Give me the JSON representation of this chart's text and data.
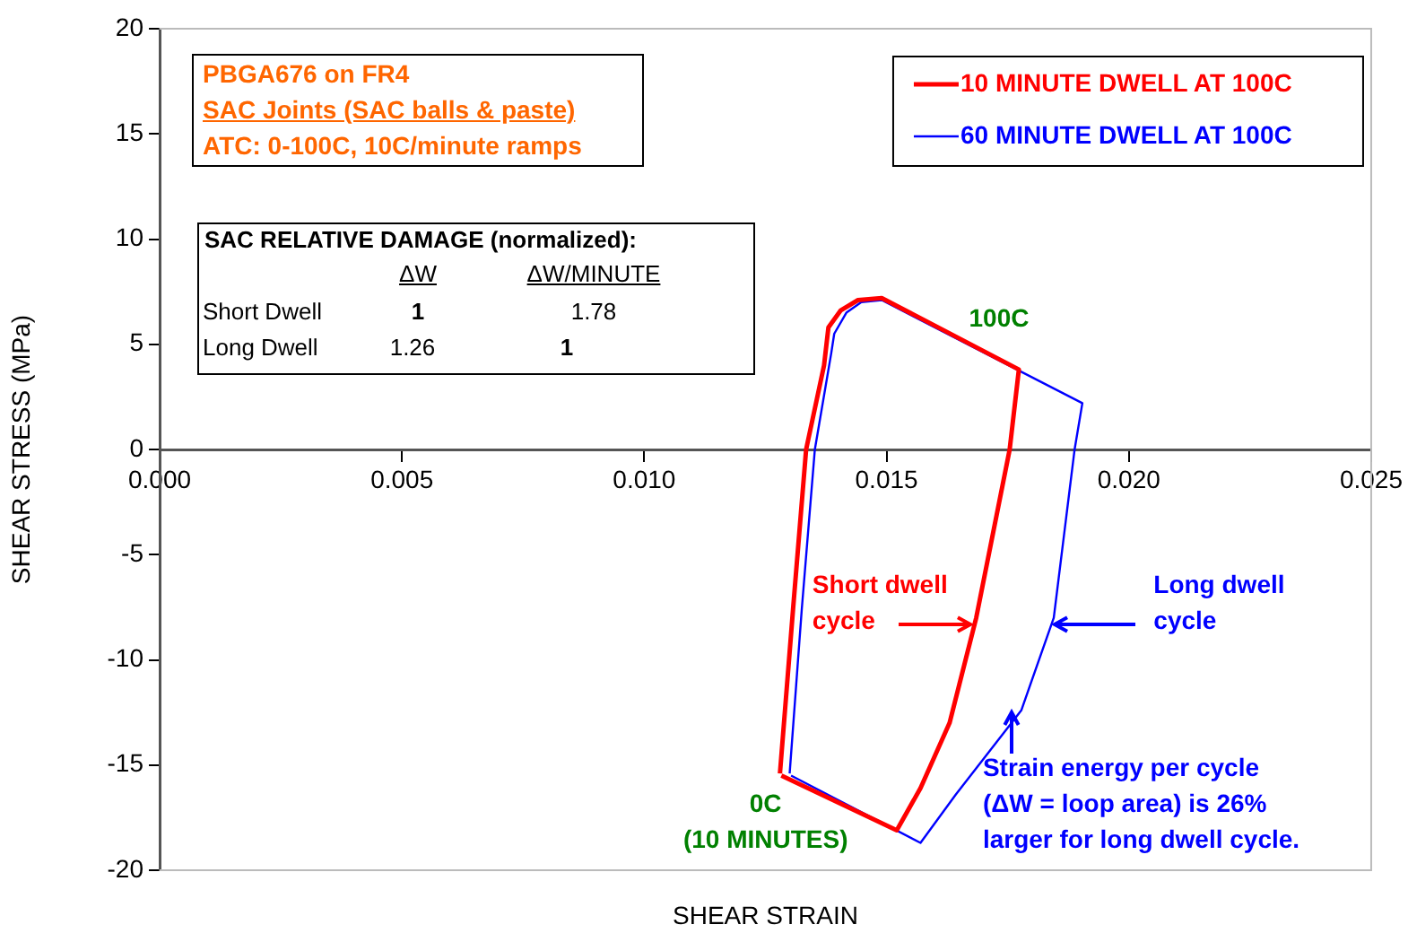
{
  "chart_data": {
    "type": "line",
    "xlabel": "SHEAR STRAIN",
    "ylabel": "SHEAR STRESS (MPa)",
    "xlim": [
      0,
      0.025
    ],
    "xticks": [
      {
        "value": 0,
        "label": "0.000"
      },
      {
        "value": 0.005,
        "label": "0.005"
      },
      {
        "value": 0.01,
        "label": "0.010"
      },
      {
        "value": 0.015,
        "label": "0.015"
      },
      {
        "value": 0.02,
        "label": "0.020"
      },
      {
        "value": 0.025,
        "label": "0.025"
      }
    ],
    "ylim": [
      -20,
      20
    ],
    "yticks": [
      -20,
      -15,
      -10,
      -5,
      0,
      5,
      10,
      15,
      20
    ],
    "grid": false,
    "legend": "top right",
    "marker": "none",
    "line_style": "solid",
    "series": [
      {
        "name": "10 MINUTE DWELL AT 100C",
        "color": "#ff0000",
        "x": [
          0.0128,
          0.01307,
          0.01334,
          0.01371,
          0.0138,
          0.01405,
          0.01441,
          0.0149,
          0.01773,
          0.01754,
          0.01685,
          0.0163,
          0.0157,
          0.01521,
          0.01283
        ],
        "values": [
          -15.4,
          -7.6,
          0,
          4,
          5.8,
          6.6,
          7.1,
          7.2,
          3.8,
          0,
          -8,
          -13,
          -16.1,
          -18.1,
          -15.5
        ]
      },
      {
        "name": "60 MINUTE DWELL AT 100C",
        "color": "#0000ff",
        "x": [
          0.013,
          0.01325,
          0.01352,
          0.01386,
          0.01392,
          0.01417,
          0.01448,
          0.0149,
          0.01904,
          0.01888,
          0.01845,
          0.01778,
          0.01643,
          0.0157,
          0.01303
        ],
        "values": [
          -15.4,
          -7.6,
          0,
          4.6,
          5.5,
          6.5,
          7.0,
          7.1,
          2.2,
          0,
          -8,
          -12.4,
          -16.4,
          -18.7,
          -15.5
        ]
      }
    ],
    "annotations": [
      "PBGA676 on FR4",
      "SAC Joints (SAC balls & paste)",
      "ATC: 0-100C, 10C/minute ramps",
      "SAC RELATIVE DAMAGE (normalized):",
      "ΔW",
      "ΔW/MINUTE",
      "Short Dwell",
      "1",
      "1.78",
      "Long Dwell",
      "1.26",
      "1",
      "100C",
      {
        "text": "0C\n(10 MINUTES)",
        "x": 0.0128,
        "y": -15.35
      },
      {
        "text": "Short dwell\ncycle",
        "x": 0.0168,
        "y": -8.1
      },
      {
        "text": "Long dwell\ncycle",
        "x": 0.0184,
        "y": -8.1
      },
      {
        "text": "Strain energy per cycle\n(ΔW = loop area) is 26%\nlarger for long dwell cycle.",
        "x": 0.0178,
        "y": -12.4
      }
    ]
  }
}
